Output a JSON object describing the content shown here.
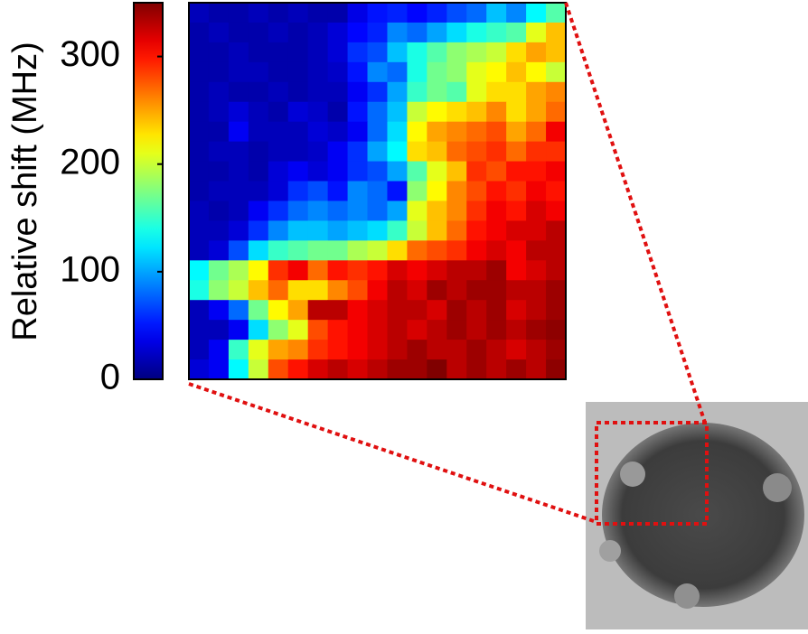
{
  "chart_data": {
    "type": "heatmap",
    "ylabel": "Relative shift (MHz)",
    "colormap": "jet",
    "zlim": [
      0,
      350
    ],
    "zticks": [
      0,
      100,
      200,
      300
    ],
    "z": [
      [
        20,
        15,
        15,
        20,
        15,
        20,
        15,
        15,
        35,
        50,
        55,
        45,
        55,
        70,
        80,
        110,
        90,
        130,
        160
      ],
      [
        15,
        20,
        15,
        15,
        20,
        15,
        20,
        30,
        45,
        55,
        90,
        80,
        100,
        120,
        140,
        150,
        160,
        210,
        240
      ],
      [
        15,
        15,
        20,
        15,
        15,
        15,
        20,
        30,
        60,
        70,
        110,
        140,
        160,
        180,
        190,
        200,
        230,
        250,
        240
      ],
      [
        15,
        15,
        20,
        20,
        15,
        15,
        20,
        25,
        50,
        90,
        80,
        140,
        170,
        180,
        210,
        220,
        240,
        220,
        200
      ],
      [
        15,
        20,
        15,
        15,
        20,
        15,
        20,
        20,
        40,
        60,
        100,
        150,
        170,
        160,
        210,
        230,
        230,
        250,
        260
      ],
      [
        15,
        20,
        30,
        20,
        15,
        30,
        25,
        15,
        50,
        80,
        110,
        200,
        220,
        230,
        240,
        260,
        230,
        250,
        270
      ],
      [
        15,
        15,
        40,
        20,
        20,
        20,
        30,
        25,
        40,
        80,
        120,
        220,
        250,
        260,
        270,
        280,
        250,
        270,
        310
      ],
      [
        15,
        20,
        20,
        15,
        20,
        20,
        25,
        40,
        60,
        100,
        130,
        230,
        240,
        270,
        280,
        290,
        270,
        290,
        290
      ],
      [
        15,
        15,
        20,
        15,
        30,
        40,
        30,
        40,
        60,
        70,
        100,
        160,
        210,
        240,
        290,
        280,
        300,
        300,
        310
      ],
      [
        15,
        20,
        20,
        20,
        30,
        60,
        70,
        50,
        90,
        80,
        50,
        180,
        220,
        260,
        280,
        300,
        290,
        310,
        300
      ],
      [
        20,
        15,
        20,
        40,
        60,
        80,
        90,
        80,
        90,
        80,
        100,
        210,
        240,
        260,
        290,
        310,
        300,
        320,
        310
      ],
      [
        20,
        20,
        30,
        60,
        90,
        110,
        110,
        100,
        110,
        120,
        150,
        200,
        240,
        270,
        300,
        310,
        320,
        320,
        330
      ],
      [
        20,
        30,
        70,
        120,
        150,
        160,
        170,
        170,
        190,
        200,
        230,
        270,
        280,
        290,
        310,
        320,
        310,
        330,
        330
      ],
      [
        130,
        170,
        190,
        220,
        290,
        310,
        270,
        300,
        290,
        300,
        320,
        310,
        320,
        330,
        330,
        340,
        310,
        320,
        330
      ],
      [
        140,
        180,
        200,
        240,
        270,
        230,
        230,
        260,
        280,
        310,
        330,
        320,
        340,
        330,
        340,
        340,
        330,
        330,
        340
      ],
      [
        20,
        40,
        80,
        170,
        220,
        250,
        330,
        330,
        310,
        320,
        330,
        330,
        320,
        340,
        330,
        340,
        320,
        330,
        340
      ],
      [
        20,
        20,
        40,
        120,
        180,
        210,
        280,
        300,
        310,
        320,
        330,
        320,
        330,
        340,
        330,
        340,
        330,
        340,
        345
      ],
      [
        20,
        40,
        150,
        210,
        250,
        260,
        290,
        300,
        310,
        320,
        330,
        340,
        330,
        330,
        340,
        330,
        320,
        330,
        340
      ],
      [
        30,
        40,
        130,
        200,
        280,
        300,
        320,
        330,
        320,
        330,
        340,
        340,
        350,
        330,
        340,
        330,
        340,
        330,
        345
      ]
    ]
  }
}
